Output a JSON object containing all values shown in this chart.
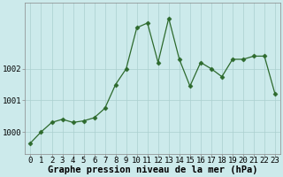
{
  "x": [
    0,
    1,
    2,
    3,
    4,
    5,
    6,
    7,
    8,
    9,
    10,
    11,
    12,
    13,
    14,
    15,
    16,
    17,
    18,
    19,
    20,
    21,
    22,
    23
  ],
  "y": [
    999.65,
    1000.0,
    1000.3,
    1000.4,
    1000.3,
    1000.35,
    1000.45,
    1000.75,
    1001.5,
    1002.0,
    1003.3,
    1003.45,
    1002.2,
    1003.6,
    1002.3,
    1001.45,
    1002.2,
    1002.0,
    1001.75,
    1002.3,
    1002.3,
    1002.4,
    1002.4,
    1001.2
  ],
  "line_color": "#2d6a2d",
  "marker": "D",
  "marker_size": 2.5,
  "bg_color": "#cceaeb",
  "grid_color_major": "#aacfcf",
  "grid_color_minor": "#bbdcdc",
  "xlabel": "Graphe pression niveau de la mer (hPa)",
  "xlabel_fontsize": 7.5,
  "tick_label_fontsize": 6.5,
  "yticks": [
    1000,
    1001,
    1002
  ],
  "ylim": [
    999.3,
    1004.1
  ],
  "xlim": [
    -0.5,
    23.5
  ],
  "title": ""
}
